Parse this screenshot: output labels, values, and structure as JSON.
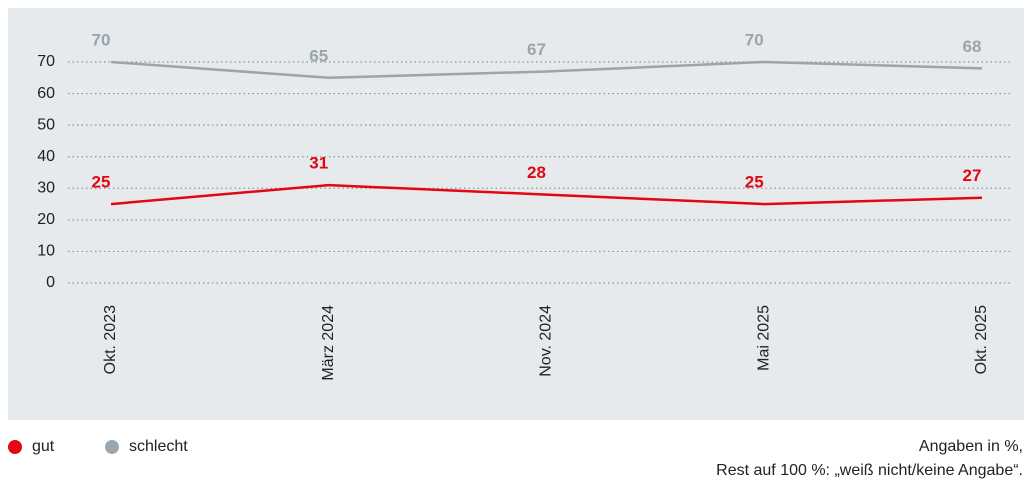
{
  "chart_data": {
    "type": "line",
    "categories": [
      "Okt. 2023",
      "März 2024",
      "Nov. 2024",
      "Mai 2025",
      "Okt. 2025"
    ],
    "series": [
      {
        "name": "gut",
        "color": "#e30613",
        "values": [
          25,
          31,
          28,
          25,
          27
        ]
      },
      {
        "name": "schlecht",
        "color": "#9aa5ad",
        "values": [
          70,
          65,
          67,
          70,
          68
        ]
      }
    ],
    "ylim": [
      0,
      70
    ],
    "yticks": [
      0,
      10,
      20,
      30,
      40,
      50,
      60,
      70
    ],
    "grid": true,
    "notes": [
      "Angaben in %,",
      "Rest auf 100 %: „weiß nicht/keine Angabe“."
    ]
  }
}
